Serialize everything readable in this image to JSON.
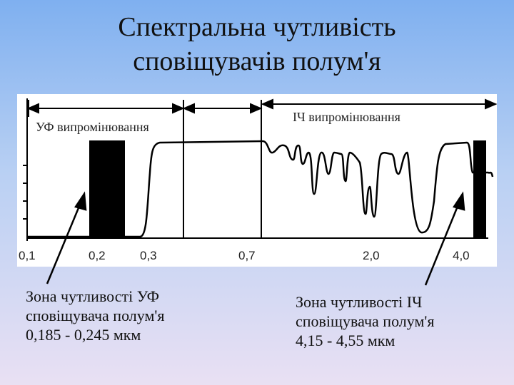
{
  "title": {
    "line1": "Спектральна чутливість",
    "line2": "сповіщувачів полум'я"
  },
  "bands": {
    "uv_label": "УФ випромінювання",
    "ir_label": "ІЧ випромінювання"
  },
  "x_ticks": [
    "0,1",
    "0,2",
    "0,3",
    "0,7",
    "2,0",
    "4,0"
  ],
  "captions": {
    "uv": {
      "line1": "Зона чутливості УФ",
      "line2": "сповіщувача полум'я",
      "line3": "0,185 - 0,245 мкм"
    },
    "ir": {
      "line1": "Зона чутливості ІЧ",
      "line2": "сповіщувача полум'я",
      "line3": "4,15 - 4,55 мкм"
    }
  },
  "colors": {
    "ink": "#000000",
    "panel": "#ffffff"
  }
}
